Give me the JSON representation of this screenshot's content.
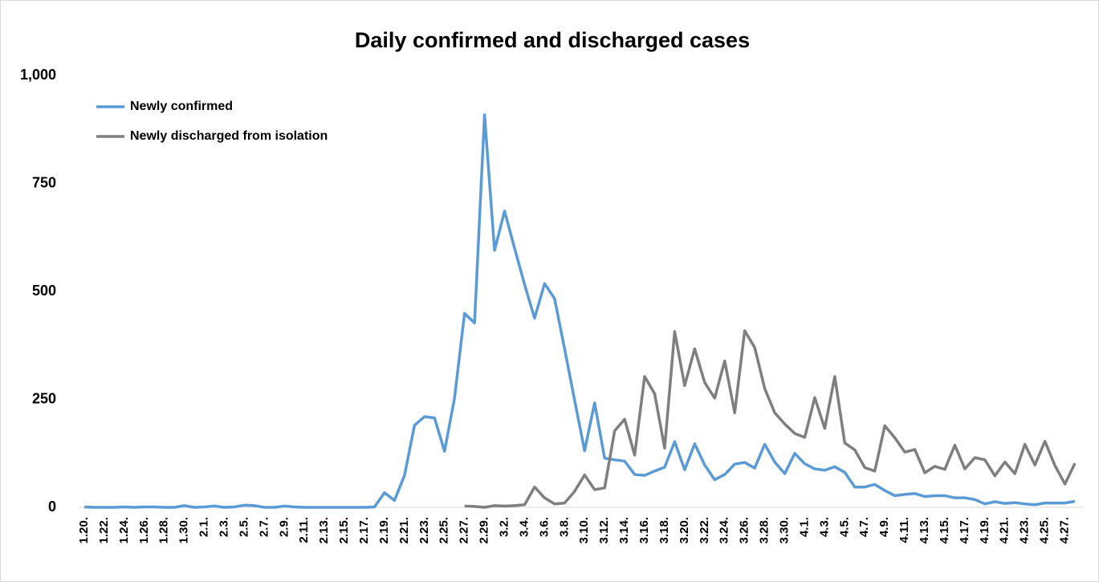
{
  "chart_data": {
    "type": "line",
    "title": "Daily confirmed and discharged cases",
    "categories": [
      "1.20.",
      null,
      "1.22.",
      null,
      "1.24.",
      null,
      "1.26.",
      null,
      "1.28.",
      null,
      "1.30.",
      null,
      "2.1.",
      null,
      "2.3.",
      null,
      "2.5.",
      null,
      "2.7.",
      null,
      "2.9.",
      null,
      "2.11.",
      null,
      "2.13.",
      null,
      "2.15.",
      null,
      "2.17.",
      null,
      "2.19.",
      null,
      "2.21.",
      null,
      "2.23.",
      null,
      "2.25.",
      null,
      "2.27.",
      null,
      "2.29.",
      null,
      "3.2.",
      null,
      "3.4.",
      null,
      "3.6.",
      null,
      "3.8.",
      null,
      "3.10.",
      null,
      "3.12.",
      null,
      "3.14.",
      null,
      "3.16.",
      null,
      "3.18.",
      null,
      "3.20.",
      null,
      "3.22.",
      null,
      "3.24.",
      null,
      "3.26.",
      null,
      "3.28.",
      null,
      "3.30.",
      null,
      "4.1.",
      null,
      "4.3.",
      null,
      "4.5.",
      null,
      "4.7.",
      null,
      "4.9.",
      null,
      "4.11.",
      null,
      "4.13.",
      null,
      "4.15.",
      null,
      "4.17.",
      null,
      "4.19.",
      null,
      "4.21.",
      null,
      "4.23.",
      null,
      "4.25.",
      null,
      "4.27.",
      null
    ],
    "series": [
      {
        "name": "Newly confirmed",
        "color": "#5b9bd5",
        "values": [
          1,
          0,
          0,
          0,
          1,
          0,
          1,
          1,
          0,
          0,
          4,
          0,
          1,
          3,
          0,
          1,
          5,
          4,
          0,
          0,
          3,
          1,
          0,
          0,
          0,
          0,
          0,
          0,
          0,
          1,
          34,
          16,
          74,
          190,
          210,
          207,
          130,
          253,
          449,
          427,
          909,
          595,
          686,
          600,
          516,
          438,
          518,
          483,
          367,
          248,
          131,
          242,
          114,
          110,
          107,
          76,
          74,
          84,
          93,
          152,
          87,
          147,
          98,
          64,
          76,
          100,
          104,
          91,
          146,
          105,
          78,
          125,
          101,
          89,
          86,
          94,
          81,
          47,
          47,
          53,
          39,
          27,
          30,
          32,
          25,
          27,
          27,
          22,
          22,
          18,
          8,
          13,
          9,
          11,
          8,
          6,
          10,
          10,
          10,
          14
        ]
      },
      {
        "name": "Newly discharged from isolation",
        "color": "#7f7f7f",
        "values": [
          null,
          null,
          null,
          null,
          null,
          null,
          null,
          null,
          null,
          null,
          null,
          null,
          null,
          null,
          null,
          null,
          null,
          null,
          null,
          null,
          null,
          null,
          null,
          null,
          null,
          null,
          null,
          null,
          null,
          null,
          null,
          null,
          null,
          null,
          null,
          null,
          null,
          null,
          3,
          2,
          0,
          4,
          3,
          4,
          6,
          47,
          22,
          8,
          10,
          37,
          75,
          41,
          45,
          177,
          204,
          121,
          303,
          263,
          137,
          407,
          282,
          367,
          289,
          253,
          339,
          219,
          409,
          370,
          275,
          219,
          193,
          171,
          162,
          254,
          183,
          303,
          149,
          133,
          92,
          84,
          189,
          161,
          128,
          134,
          80,
          95,
          88,
          144,
          89,
          115,
          110,
          73,
          105,
          78,
          146,
          98,
          153,
          97,
          54,
          102
        ]
      }
    ],
    "ylim": [
      0,
      1000
    ],
    "yticks": [
      0,
      250,
      500,
      750,
      {
        "value": 1000,
        "label": "1,000"
      }
    ],
    "grid": false,
    "legend": "upper left"
  }
}
